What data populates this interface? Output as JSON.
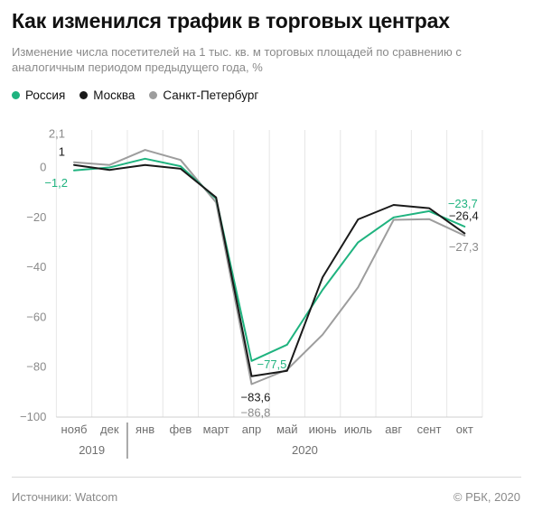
{
  "header": {
    "title": "Как изменился трафик в торговых центрах",
    "subtitle": "Изменение числа посетителей на 1 тыс. кв. м торговых площадей по сравнению с аналогичным периодом предыдущего года, %"
  },
  "legend": [
    {
      "label": "Россия",
      "color": "#1fb37f"
    },
    {
      "label": "Москва",
      "color": "#1a1a1a"
    },
    {
      "label": "Санкт-Петербург",
      "color": "#9d9d9d"
    }
  ],
  "footer": {
    "source": "Источники: Watcom",
    "copyright": "© РБК, 2020"
  },
  "chart_data": {
    "type": "line",
    "categories": [
      "нояб",
      "дек",
      "янв",
      "фев",
      "март",
      "апр",
      "май",
      "июнь",
      "июль",
      "авг",
      "сент",
      "окт"
    ],
    "years": [
      {
        "label": "2019",
        "from": 0,
        "to": 1
      },
      {
        "label": "2020",
        "from": 2,
        "to": 11
      }
    ],
    "ylim": [
      -100,
      15
    ],
    "yticks": [
      0,
      -20,
      -40,
      -60,
      -80,
      -100
    ],
    "ytick_labels": [
      "0",
      "−20",
      "−40",
      "−60",
      "−80",
      "−100"
    ],
    "grid": "vertical",
    "series": [
      {
        "name": "Санкт-Петербург",
        "color": "#9d9d9d",
        "values": [
          2.1,
          1,
          7,
          3,
          -14,
          -86.8,
          -81,
          -67,
          -48,
          -21,
          -20.7,
          -27.3
        ]
      },
      {
        "name": "Россия",
        "color": "#1fb37f",
        "values": [
          -1.2,
          0,
          3.5,
          0.5,
          -12.5,
          -77.5,
          -71,
          -49,
          -30,
          -20,
          -17.5,
          -23.7
        ]
      },
      {
        "name": "Москва",
        "color": "#1a1a1a",
        "values": [
          1,
          -1,
          1,
          -0.5,
          -12,
          -83.6,
          -81.5,
          -44,
          -20.8,
          -15,
          -16.3,
          -26.4
        ]
      }
    ],
    "annotations": [
      {
        "text": "2,1",
        "color": "#8a8a8a",
        "series": 0,
        "point": 0,
        "anchor": "end",
        "dx": -10,
        "dy": -27
      },
      {
        "text": "1",
        "color": "#1a1a1a",
        "series": 2,
        "point": 0,
        "anchor": "end",
        "dx": -10,
        "dy": -10
      },
      {
        "text": "−1,2",
        "color": "#1fb37f",
        "series": 1,
        "point": 0,
        "anchor": "end",
        "dx": -7,
        "dy": 18
      },
      {
        "text": "−77,5",
        "color": "#1fb37f",
        "series": 1,
        "point": 5,
        "anchor": "start",
        "dx": 6,
        "dy": 8
      },
      {
        "text": "−83,6",
        "color": "#1a1a1a",
        "series": 2,
        "point": 5,
        "anchor": "start",
        "dx": -12,
        "dy": 28
      },
      {
        "text": "−86,8",
        "color": "#8a8a8a",
        "series": 0,
        "point": 5,
        "anchor": "start",
        "dx": -12,
        "dy": 36
      },
      {
        "text": "−23,7",
        "color": "#1fb37f",
        "series": 1,
        "point": 11,
        "anchor": "middle",
        "dx": -2,
        "dy": -21
      },
      {
        "text": "−26,4",
        "color": "#1a1a1a",
        "series": 2,
        "point": 11,
        "anchor": "middle",
        "dx": -1,
        "dy": -15
      },
      {
        "text": "−27,3",
        "color": "#8a8a8a",
        "series": 0,
        "point": 11,
        "anchor": "middle",
        "dx": -1,
        "dy": 17
      }
    ]
  }
}
